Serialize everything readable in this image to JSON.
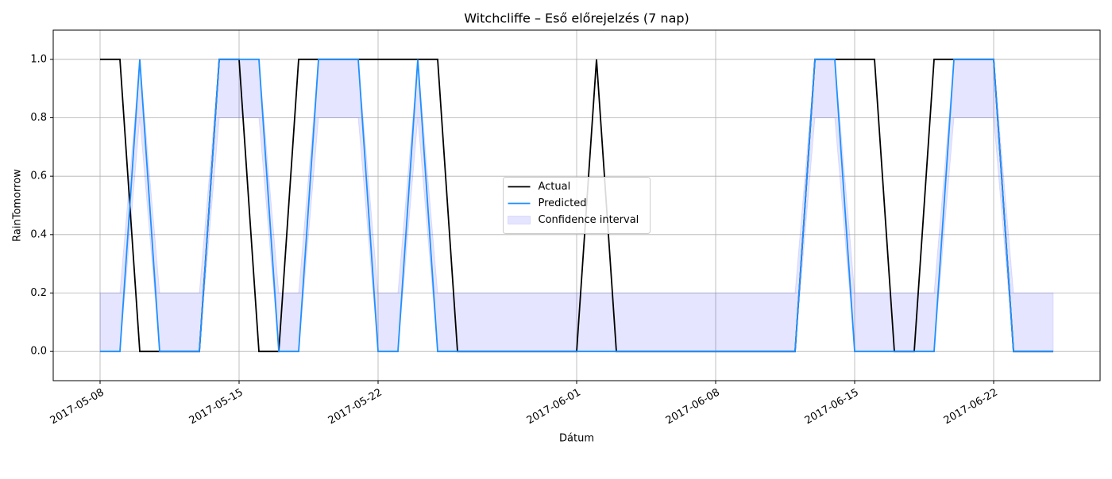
{
  "chart_data": {
    "type": "line",
    "title": "Witchcliffe – Eső előrejelzés (7 nap)",
    "x_label": "Dátum",
    "y_label": "RainTomorrow",
    "x": [
      "2017-05-08",
      "2017-05-09",
      "2017-05-10",
      "2017-05-11",
      "2017-05-12",
      "2017-05-13",
      "2017-05-14",
      "2017-05-15",
      "2017-05-16",
      "2017-05-17",
      "2017-05-18",
      "2017-05-19",
      "2017-05-20",
      "2017-05-21",
      "2017-05-22",
      "2017-05-23",
      "2017-05-24",
      "2017-05-25",
      "2017-05-26",
      "2017-05-27",
      "2017-05-28",
      "2017-05-29",
      "2017-05-30",
      "2017-05-31",
      "2017-06-01",
      "2017-06-02",
      "2017-06-03",
      "2017-06-04",
      "2017-06-05",
      "2017-06-06",
      "2017-06-07",
      "2017-06-08",
      "2017-06-09",
      "2017-06-10",
      "2017-06-11",
      "2017-06-12",
      "2017-06-13",
      "2017-06-14",
      "2017-06-15",
      "2017-06-16",
      "2017-06-17",
      "2017-06-18",
      "2017-06-19",
      "2017-06-20",
      "2017-06-21",
      "2017-06-22",
      "2017-06-23",
      "2017-06-24",
      "2017-06-25"
    ],
    "series": [
      {
        "name": "Actual",
        "color": "#000000",
        "values": [
          1,
          1,
          0,
          0,
          0,
          0,
          1,
          1,
          0,
          0,
          1,
          1,
          1,
          1,
          1,
          1,
          1,
          1,
          0,
          0,
          0,
          0,
          0,
          0,
          0,
          1,
          0,
          0,
          0,
          0,
          0,
          0,
          0,
          0,
          0,
          0,
          1,
          1,
          1,
          1,
          0,
          0,
          1,
          1,
          1,
          1,
          0,
          0,
          0
        ]
      },
      {
        "name": "Predicted",
        "color": "#1e90ff",
        "values": [
          0,
          0,
          1,
          0,
          0,
          0,
          1,
          1,
          1,
          0,
          0,
          1,
          1,
          1,
          0,
          0,
          1,
          0,
          0,
          0,
          0,
          0,
          0,
          0,
          0,
          0,
          0,
          0,
          0,
          0,
          0,
          0,
          0,
          0,
          0,
          0,
          1,
          1,
          0,
          0,
          0,
          0,
          0,
          1,
          1,
          1,
          0,
          0,
          0
        ]
      }
    ],
    "band": {
      "name": "Confidence interval",
      "color": "#0000ff",
      "opacity": 0.1,
      "lower": [
        0,
        0,
        0.8,
        0,
        0,
        0,
        0.8,
        0.8,
        0.8,
        0,
        0,
        0.8,
        0.8,
        0.8,
        0,
        0,
        0.8,
        0,
        0,
        0,
        0,
        0,
        0,
        0,
        0,
        0,
        0,
        0,
        0,
        0,
        0,
        0,
        0,
        0,
        0,
        0,
        0.8,
        0.8,
        0,
        0,
        0,
        0,
        0,
        0.8,
        0.8,
        0.8,
        0,
        0,
        0
      ],
      "upper": [
        0.2,
        0.2,
        1,
        0.2,
        0.2,
        0.2,
        1,
        1,
        1,
        0.2,
        0.2,
        1,
        1,
        1,
        0.2,
        0.2,
        1,
        0.2,
        0.2,
        0.2,
        0.2,
        0.2,
        0.2,
        0.2,
        0.2,
        0.2,
        0.2,
        0.2,
        0.2,
        0.2,
        0.2,
        0.2,
        0.2,
        0.2,
        0.2,
        0.2,
        1,
        1,
        0.2,
        0.2,
        0.2,
        0.2,
        0.2,
        1,
        1,
        1,
        0.2,
        0.2,
        0.2
      ]
    },
    "xlim": [
      "2017-05-05T15:22",
      "2017-06-27T08:38"
    ],
    "xticks": [
      "2017-05-08",
      "2017-05-15",
      "2017-05-22",
      "2017-06-01",
      "2017-06-08",
      "2017-06-15",
      "2017-06-22"
    ],
    "ylim": [
      -0.1,
      1.1
    ],
    "yticks": [
      {
        "value": 0,
        "label": "0.0"
      },
      0.2,
      0.4,
      0.6,
      0.8,
      {
        "value": 1,
        "label": "1.0"
      }
    ],
    "grid": true,
    "legend": "center"
  }
}
